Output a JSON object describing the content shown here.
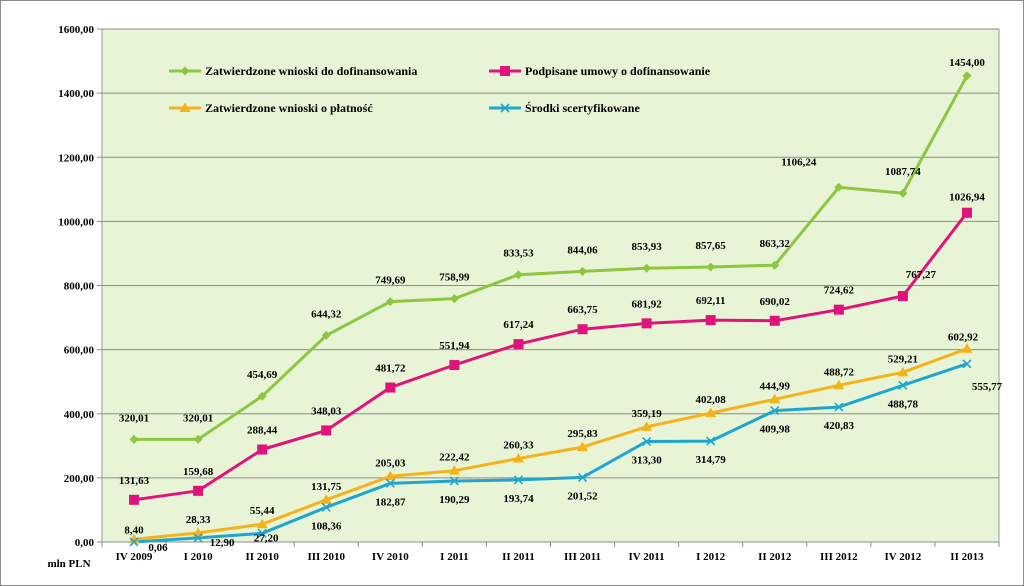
{
  "chart_data": {
    "type": "line",
    "unit_label": "mln PLN",
    "categories": [
      "IV 2009",
      "I 2010",
      "II 2010",
      "III 2010",
      "IV 2010",
      "I 2011",
      "II 2011",
      "III 2011",
      "IV 2011",
      "I 2012",
      "II 2012",
      "III 2012",
      "IV 2012",
      "II 2013"
    ],
    "y_ticks": [
      "0,00",
      "200,00",
      "400,00",
      "600,00",
      "800,00",
      "1000,00",
      "1200,00",
      "1400,00",
      "1600,00"
    ],
    "ylim": [
      0,
      1600
    ],
    "grid": true,
    "plot_background": "#e8f4d6",
    "legend_position": "top-left, inside plot",
    "series": [
      {
        "name": "Zatwierdzone wnioski do dofinansowania",
        "color": "#8dc63f",
        "marker": "diamond",
        "values": [
          320.01,
          320.01,
          454.69,
          644.32,
          749.69,
          758.99,
          833.53,
          844.06,
          853.93,
          857.65,
          863.32,
          1106.24,
          1087.74,
          1454.0
        ],
        "labels": [
          "320,01",
          "320,01",
          "454,69",
          "644,32",
          "749,69",
          "758,99",
          "833,53",
          "844,06",
          "853,93",
          "857,65",
          "863,32",
          "1106,24",
          "1087,74",
          "1454,00"
        ]
      },
      {
        "name": "Podpisane umowy o dofinansowanie",
        "color": "#e0127b",
        "marker": "square",
        "values": [
          131.63,
          159.68,
          288.44,
          348.03,
          481.72,
          551.94,
          617.24,
          663.75,
          681.92,
          692.11,
          690.02,
          724.62,
          767.27,
          1026.94
        ],
        "labels": [
          "131,63",
          "159,68",
          "288,44",
          "348,03",
          "481,72",
          "551,94",
          "617,24",
          "663,75",
          "681,92",
          "692,11",
          "690,02",
          "724,62",
          "767,27",
          "1026,94"
        ]
      },
      {
        "name": "Zatwierdzone wnioski o płatność",
        "color": "#f5b21b",
        "marker": "triangle",
        "values": [
          8.4,
          28.33,
          55.44,
          131.75,
          205.03,
          222.42,
          260.33,
          295.83,
          359.19,
          402.08,
          444.99,
          488.72,
          529.21,
          602.92
        ],
        "labels": [
          "8,40",
          "28,33",
          "55,44",
          "131,75",
          "205,03",
          "222,42",
          "260,33",
          "295,83",
          "359,19",
          "402,08",
          "444,99",
          "488,72",
          "529,21",
          "602,92"
        ]
      },
      {
        "name": "Środki scertyfikowane",
        "color": "#1ea6d0",
        "marker": "x",
        "values": [
          0.06,
          12.9,
          27.2,
          108.36,
          182.87,
          190.29,
          193.74,
          201.52,
          313.3,
          314.79,
          409.98,
          420.83,
          488.78,
          555.77
        ],
        "labels": [
          "0,06",
          "12,90",
          "27,20",
          "108,36",
          "182,87",
          "190,29",
          "193,74",
          "201,52",
          "313,30",
          "314,79",
          "409,98",
          "420,83",
          "488,78",
          "555,77"
        ]
      }
    ]
  }
}
